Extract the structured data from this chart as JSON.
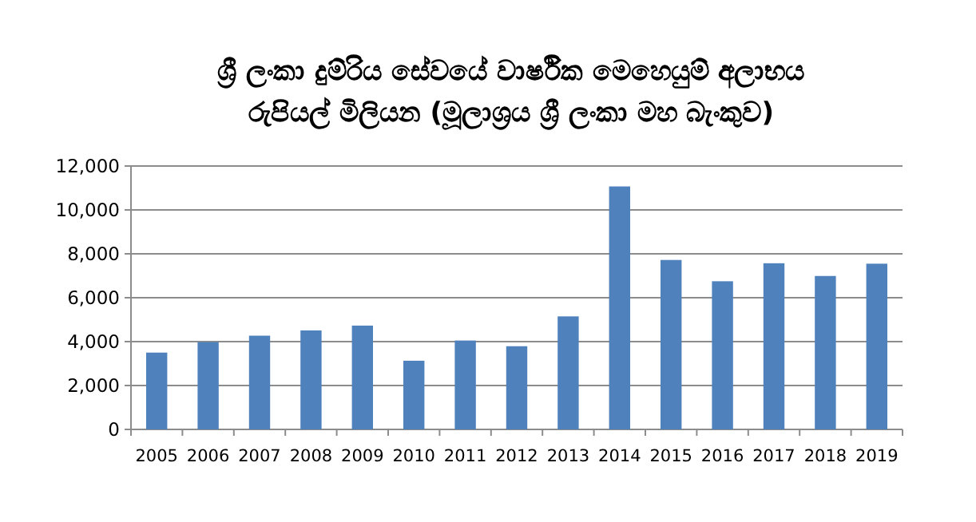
{
  "chart_data": {
    "type": "bar",
    "title": "ශ්‍රී ලංකා දුම්රිය සේවයේ වාර්ෂික මෙහෙයුම් අලාභය\nරුපියල් මිලියන (මූලාශ්‍රය ශ්‍රී ලංකා මහ බැංකුව)",
    "categories": [
      "2005",
      "2006",
      "2007",
      "2008",
      "2009",
      "2010",
      "2011",
      "2012",
      "2013",
      "2014",
      "2015",
      "2016",
      "2017",
      "2018",
      "2019"
    ],
    "values": [
      3500,
      3980,
      4270,
      4510,
      4730,
      3130,
      4050,
      3790,
      5150,
      11070,
      7720,
      6750,
      7570,
      6990,
      7550
    ],
    "color": "#4f81bd",
    "ylim": [
      0,
      12000
    ],
    "yticks": [
      {
        "value": 0,
        "label": "0"
      },
      {
        "value": 2000,
        "label": "2,000"
      },
      {
        "value": 4000,
        "label": "4,000"
      },
      {
        "value": 6000,
        "label": "6,000"
      },
      {
        "value": 8000,
        "label": "8,000"
      },
      {
        "value": 10000,
        "label": "10,000"
      },
      {
        "value": 12000,
        "label": "12,000"
      }
    ],
    "grid": "y"
  }
}
